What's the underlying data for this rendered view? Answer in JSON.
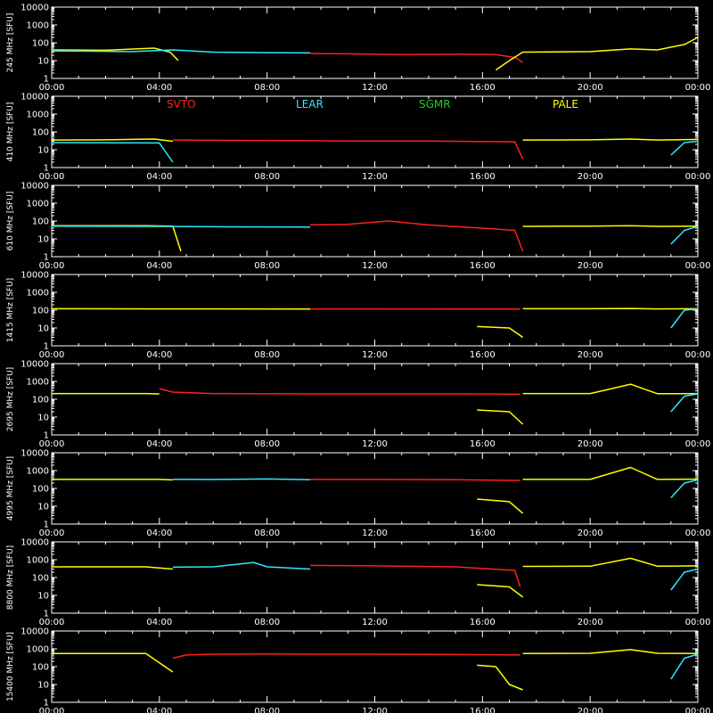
{
  "chart_data": {
    "type": "line",
    "y_scale": "log",
    "ylim": [
      1,
      10000
    ],
    "y_ticks": [
      "10000",
      "1000",
      "100",
      "10",
      "1"
    ],
    "x_ticks": [
      "00:00",
      "04:00",
      "08:00",
      "12:00",
      "16:00",
      "20:00",
      "00:00"
    ],
    "x_unit": "hours",
    "x_range": [
      0,
      24
    ],
    "legend": [
      {
        "name": "SVTO",
        "color": "#ff2020"
      },
      {
        "name": "LEAR",
        "color": "#30e8ff"
      },
      {
        "name": "SGMR",
        "color": "#20d020"
      },
      {
        "name": "PALE",
        "color": "#ffff00"
      }
    ],
    "panels": [
      {
        "ylabel": "245 MHz [SFU]",
        "series": [
          {
            "name": "PALE",
            "x": [
              0,
              2,
              3.8,
              4.4,
              4.7
            ],
            "y": [
              40,
              38,
              50,
              30,
              10
            ]
          },
          {
            "name": "LEAR",
            "x": [
              0,
              3,
              4.5,
              6,
              8,
              9.6
            ],
            "y": [
              35,
              32,
              40,
              30,
              28,
              27
            ]
          },
          {
            "name": "SVTO",
            "x": [
              9.6,
              11,
              13,
              15,
              16.5,
              17.2,
              17.5
            ],
            "y": [
              25,
              24,
              22,
              23,
              22,
              15,
              8
            ]
          },
          {
            "name": "PALE",
            "x": [
              16.5,
              17,
              17.5,
              20,
              21.5,
              22.5,
              23.5,
              24
            ],
            "y": [
              3,
              10,
              30,
              32,
              45,
              40,
              80,
              200
            ]
          }
        ]
      },
      {
        "ylabel": "410 MHz [SFU]",
        "series": [
          {
            "name": "PALE",
            "x": [
              0,
              2,
              3.8,
              4.5
            ],
            "y": [
              35,
              36,
              40,
              30
            ]
          },
          {
            "name": "LEAR",
            "x": [
              0,
              4,
              4.5
            ],
            "y": [
              25,
              24,
              2
            ]
          },
          {
            "name": "SVTO",
            "x": [
              4.5,
              6,
              8,
              9.6,
              11,
              14,
              17.2,
              17.5
            ],
            "y": [
              35,
              34,
              33,
              32,
              31,
              31,
              28,
              3
            ]
          },
          {
            "name": "PALE",
            "x": [
              17.5,
              20,
              21.5,
              22.5,
              24
            ],
            "y": [
              35,
              36,
              40,
              35,
              38
            ]
          },
          {
            "name": "LEAR",
            "x": [
              23,
              23.5,
              24
            ],
            "y": [
              5,
              25,
              30
            ]
          }
        ]
      },
      {
        "ylabel": "610 MHz [SFU]",
        "series": [
          {
            "name": "PALE",
            "x": [
              0,
              3.5,
              4.5,
              4.8
            ],
            "y": [
              55,
              55,
              52,
              2
            ]
          },
          {
            "name": "LEAR",
            "x": [
              0,
              4,
              6,
              8,
              9.6
            ],
            "y": [
              52,
              50,
              48,
              47,
              46
            ]
          },
          {
            "name": "SVTO",
            "x": [
              9.6,
              11,
              12.5,
              14,
              16,
              17.2,
              17.5
            ],
            "y": [
              60,
              65,
              100,
              60,
              40,
              30,
              2
            ]
          },
          {
            "name": "PALE",
            "x": [
              17.5,
              20,
              21.5,
              22.5,
              24
            ],
            "y": [
              50,
              52,
              55,
              50,
              52
            ]
          },
          {
            "name": "LEAR",
            "x": [
              23,
              23.5,
              24
            ],
            "y": [
              5,
              30,
              50
            ]
          }
        ]
      },
      {
        "ylabel": "1415 MHz [SFU]",
        "series": [
          {
            "name": "PALE",
            "x": [
              0,
              4,
              6,
              9.6
            ],
            "y": [
              120,
              118,
              117,
              116
            ]
          },
          {
            "name": "SVTO",
            "x": [
              9.6,
              12,
              15,
              17.4
            ],
            "y": [
              118,
              117,
              116,
              115
            ]
          },
          {
            "name": "PALE",
            "x": [
              15.8,
              17,
              17.5
            ],
            "y": [
              12,
              10,
              3
            ]
          },
          {
            "name": "PALE",
            "x": [
              17.5,
              20,
              21.5,
              22.5,
              24
            ],
            "y": [
              120,
              120,
              125,
              118,
              120
            ]
          },
          {
            "name": "LEAR",
            "x": [
              23,
              23.5,
              24
            ],
            "y": [
              10,
              100,
              115
            ]
          }
        ]
      },
      {
        "ylabel": "2695 MHz [SFU]",
        "series": [
          {
            "name": "PALE",
            "x": [
              0,
              3.5,
              4
            ],
            "y": [
              210,
              210,
              200
            ]
          },
          {
            "name": "SVTO",
            "x": [
              4,
              4.5,
              6,
              9.6,
              12,
              15,
              17.4
            ],
            "y": [
              400,
              250,
              210,
              200,
              200,
              200,
              195
            ]
          },
          {
            "name": "PALE",
            "x": [
              15.8,
              17,
              17.5
            ],
            "y": [
              25,
              20,
              4
            ]
          },
          {
            "name": "PALE",
            "x": [
              17.5,
              20,
              21.5,
              22.5,
              24
            ],
            "y": [
              210,
              210,
              700,
              205,
              210
            ]
          },
          {
            "name": "LEAR",
            "x": [
              23,
              23.5,
              24
            ],
            "y": [
              20,
              150,
              200
            ]
          }
        ]
      },
      {
        "ylabel": "4995 MHz [SFU]",
        "series": [
          {
            "name": "PALE",
            "x": [
              0,
              4,
              4.5
            ],
            "y": [
              320,
              320,
              300
            ]
          },
          {
            "name": "LEAR",
            "x": [
              4.5,
              6,
              8,
              9.6
            ],
            "y": [
              320,
              315,
              340,
              310
            ]
          },
          {
            "name": "SVTO",
            "x": [
              9.6,
              12,
              15,
              17.4
            ],
            "y": [
              320,
              315,
              310,
              280
            ]
          },
          {
            "name": "PALE",
            "x": [
              15.8,
              17,
              17.5
            ],
            "y": [
              25,
              18,
              4
            ]
          },
          {
            "name": "PALE",
            "x": [
              17.5,
              20,
              21.5,
              22.5,
              24
            ],
            "y": [
              320,
              320,
              1500,
              320,
              330
            ]
          },
          {
            "name": "LEAR",
            "x": [
              23,
              23.5,
              24
            ],
            "y": [
              30,
              200,
              300
            ]
          }
        ]
      },
      {
        "ylabel": "8800 MHz [SFU]",
        "series": [
          {
            "name": "PALE",
            "x": [
              0,
              3.5,
              4.5
            ],
            "y": [
              400,
              400,
              300
            ]
          },
          {
            "name": "LEAR",
            "x": [
              4.5,
              6,
              7.5,
              8,
              9.6
            ],
            "y": [
              380,
              400,
              700,
              400,
              300
            ]
          },
          {
            "name": "SVTO",
            "x": [
              9.6,
              12,
              15,
              17.2,
              17.4
            ],
            "y": [
              480,
              450,
              400,
              250,
              30
            ]
          },
          {
            "name": "PALE",
            "x": [
              15.8,
              17,
              17.5
            ],
            "y": [
              40,
              30,
              8
            ]
          },
          {
            "name": "PALE",
            "x": [
              17.5,
              20,
              21.5,
              22.5,
              24
            ],
            "y": [
              420,
              430,
              1200,
              430,
              450
            ]
          },
          {
            "name": "LEAR",
            "x": [
              23,
              23.5,
              24
            ],
            "y": [
              20,
              200,
              300
            ]
          }
        ]
      },
      {
        "ylabel": "15400 MHz [SFU]",
        "series": [
          {
            "name": "PALE",
            "x": [
              0,
              3.5,
              4.5
            ],
            "y": [
              550,
              550,
              50
            ]
          },
          {
            "name": "SVTO",
            "x": [
              4.5,
              5,
              6,
              8,
              9.6,
              12,
              15,
              17.4
            ],
            "y": [
              300,
              450,
              500,
              510,
              500,
              500,
              480,
              450
            ]
          },
          {
            "name": "PALE",
            "x": [
              15.8,
              16.5,
              17,
              17.5
            ],
            "y": [
              120,
              100,
              10,
              5
            ]
          },
          {
            "name": "PALE",
            "x": [
              17.5,
              20,
              21.5,
              22.5,
              24
            ],
            "y": [
              550,
              560,
              900,
              560,
              550
            ]
          },
          {
            "name": "LEAR",
            "x": [
              23,
              23.5,
              24
            ],
            "y": [
              20,
              300,
              500
            ]
          }
        ]
      }
    ]
  }
}
